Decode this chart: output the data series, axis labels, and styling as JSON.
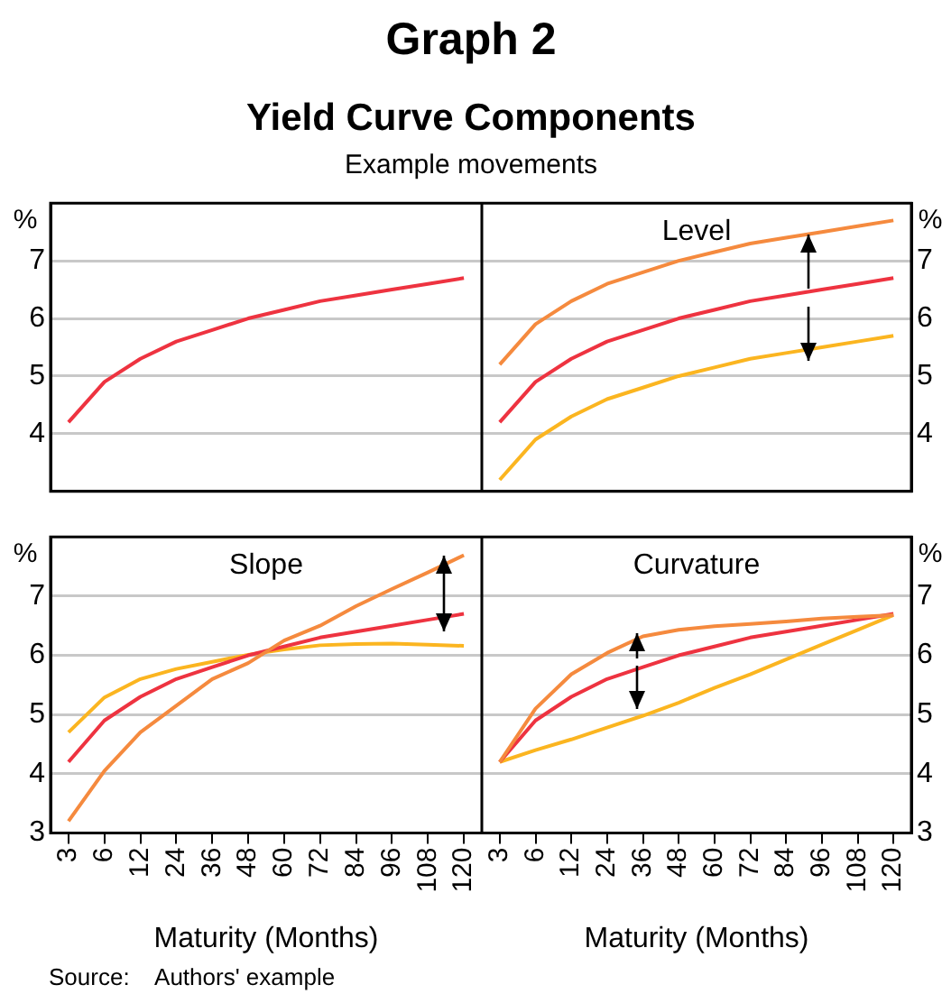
{
  "chart_data": [
    {
      "type": "line",
      "title": "Graph 2",
      "subtitle": "Yield Curve Components",
      "annotations": [
        "Example movements"
      ],
      "categories": [
        "3",
        "6",
        "12",
        "24",
        "36",
        "48",
        "60",
        "72",
        "84",
        "96",
        "108",
        "120"
      ],
      "ylabel": "%",
      "ylim": [
        3,
        8
      ],
      "yticks": [
        4,
        5,
        6,
        7
      ],
      "grid": "y",
      "tick_labels": "y",
      "series": [
        {
          "color": "#ee3340",
          "values": [
            4.2,
            4.9,
            5.3,
            5.6,
            5.8,
            6.0,
            6.15,
            6.3,
            6.4,
            6.5,
            6.6,
            6.7
          ]
        }
      ]
    },
    {
      "type": "line",
      "title": "Level",
      "categories": [
        "3",
        "6",
        "12",
        "24",
        "36",
        "48",
        "60",
        "72",
        "84",
        "96",
        "108",
        "120"
      ],
      "y2label": "%",
      "y2lim": [
        3,
        8
      ],
      "y2ticks": [
        4,
        5,
        6,
        7
      ],
      "grid": "y",
      "tick_labels": "y",
      "series": [
        {
          "color": "#f58a3e",
          "axis": "y2",
          "values": [
            5.2,
            5.9,
            6.3,
            6.6,
            6.8,
            7.0,
            7.15,
            7.3,
            7.4,
            7.5,
            7.6,
            7.7
          ]
        },
        {
          "color": "#ee3340",
          "axis": "y2",
          "values": [
            4.2,
            4.9,
            5.3,
            5.6,
            5.8,
            6.0,
            6.15,
            6.3,
            6.4,
            6.5,
            6.6,
            6.7
          ]
        },
        {
          "color": "#fbb520",
          "axis": "y2",
          "values": [
            3.2,
            3.9,
            4.3,
            4.6,
            4.8,
            5.0,
            5.15,
            5.3,
            5.4,
            5.5,
            5.6,
            5.7
          ]
        }
      ]
    },
    {
      "type": "line",
      "title": "Slope",
      "categories": [
        "3",
        "6",
        "12",
        "24",
        "36",
        "48",
        "60",
        "72",
        "84",
        "96",
        "108",
        "120"
      ],
      "xlabel": "Maturity (Months)",
      "ylabel": "%",
      "ylim": [
        3,
        8
      ],
      "yticks": [
        3,
        4,
        5,
        6,
        7
      ],
      "grid": "y",
      "annotations": [
        "Source:    Authors' example"
      ],
      "series": [
        {
          "color": "#f58a3e",
          "values": [
            3.2,
            4.05,
            4.7,
            5.15,
            5.6,
            5.87,
            6.25,
            6.5,
            6.83,
            7.12,
            7.4,
            7.69
          ]
        },
        {
          "color": "#ee3340",
          "values": [
            4.2,
            4.9,
            5.3,
            5.6,
            5.8,
            6.0,
            6.15,
            6.3,
            6.4,
            6.5,
            6.6,
            6.7
          ]
        },
        {
          "color": "#fbb520",
          "values": [
            4.7,
            5.29,
            5.6,
            5.77,
            5.89,
            6.01,
            6.1,
            6.17,
            6.19,
            6.2,
            6.18,
            6.16
          ]
        }
      ]
    },
    {
      "type": "line",
      "title": "Curvature",
      "categories": [
        "3",
        "6",
        "12",
        "24",
        "36",
        "48",
        "60",
        "72",
        "84",
        "96",
        "108",
        "120"
      ],
      "xlabel": "Maturity (Months)",
      "y2label": "%",
      "y2lim": [
        3,
        8
      ],
      "y2ticks": [
        3,
        4,
        5,
        6,
        7
      ],
      "grid": "y",
      "series": [
        {
          "color": "#f58a3e",
          "axis": "y2",
          "values": [
            4.2,
            5.1,
            5.68,
            6.04,
            6.32,
            6.43,
            6.49,
            6.53,
            6.57,
            6.62,
            6.65,
            6.68
          ]
        },
        {
          "color": "#ee3340",
          "axis": "y2",
          "values": [
            4.2,
            4.9,
            5.3,
            5.6,
            5.8,
            6.0,
            6.15,
            6.3,
            6.4,
            6.5,
            6.6,
            6.7
          ]
        },
        {
          "color": "#fbb520",
          "axis": "y2",
          "values": [
            4.2,
            4.4,
            4.58,
            4.78,
            4.98,
            5.2,
            5.45,
            5.68,
            5.93,
            6.18,
            6.43,
            6.68
          ]
        }
      ]
    }
  ]
}
